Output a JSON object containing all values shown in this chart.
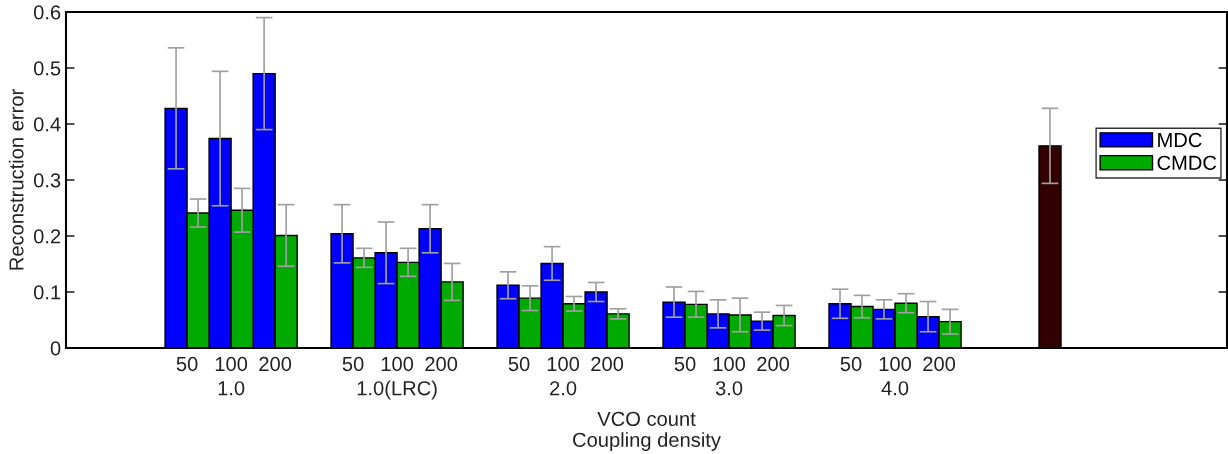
{
  "chart_data": {
    "type": "bar",
    "xlabel": "VCO count\nCoupling density",
    "ylabel": "Reconstruction error",
    "categories": [
      "50",
      "100",
      "200",
      "50",
      "100",
      "200",
      "50",
      "100",
      "200",
      "50",
      "100",
      "200",
      "50",
      "100",
      "200",
      null,
      null,
      null
    ],
    "series": [
      {
        "name": "MDC",
        "color": "#0000ff",
        "colors": [
          "#0000ff",
          "#0000ff",
          "#0000ff",
          "#0000ff",
          "#0000ff",
          "#0000ff",
          "#0000ff",
          "#0000ff",
          "#0000ff",
          "#0000ff",
          "#0000ff",
          "#0000ff",
          "#0000ff",
          "#0000ff",
          "#0000ff",
          "#000000",
          "#330000",
          "#000000"
        ],
        "values": [
          0.428,
          0.374,
          0.49,
          0.204,
          0.17,
          0.213,
          0.112,
          0.151,
          0.1,
          0.082,
          0.061,
          0.048,
          0.079,
          0.069,
          0.056,
          0,
          0.361,
          0
        ],
        "errors": [
          0.108,
          0.12,
          0.1,
          0.052,
          0.055,
          0.043,
          0.024,
          0.03,
          0.017,
          0.027,
          0.025,
          0.016,
          0.026,
          0.017,
          0.027,
          null,
          0.067,
          null
        ]
      },
      {
        "name": "CMDC",
        "color": "#00aa00",
        "colors": [
          "#00aa00",
          "#00aa00",
          "#00aa00",
          "#00aa00",
          "#00aa00",
          "#00aa00",
          "#00aa00",
          "#00aa00",
          "#00aa00",
          "#00aa00",
          "#00aa00",
          "#00aa00",
          "#00aa00",
          "#00aa00",
          "#00aa00",
          "#000000",
          "#000000",
          "#000000"
        ],
        "values": [
          0.241,
          0.246,
          0.201,
          0.161,
          0.153,
          0.118,
          0.089,
          0.079,
          0.061,
          0.078,
          0.059,
          0.058,
          0.074,
          0.08,
          0.047,
          0,
          0,
          0
        ],
        "errors": [
          0.025,
          0.039,
          0.055,
          0.017,
          0.025,
          0.033,
          0.022,
          0.013,
          0.009,
          0.023,
          0.03,
          0.018,
          0.02,
          0.017,
          0.022,
          null,
          null,
          null
        ]
      }
    ],
    "annotations": [
      "1.0",
      "1.0(LRC)",
      "2.0",
      "3.0",
      "4.0"
    ],
    "ylim": [
      0,
      0.6
    ],
    "yticks": [
      0,
      0.1,
      0.2,
      0.3,
      0.4,
      0.5,
      0.6
    ],
    "legend": "right",
    "grid": false
  }
}
